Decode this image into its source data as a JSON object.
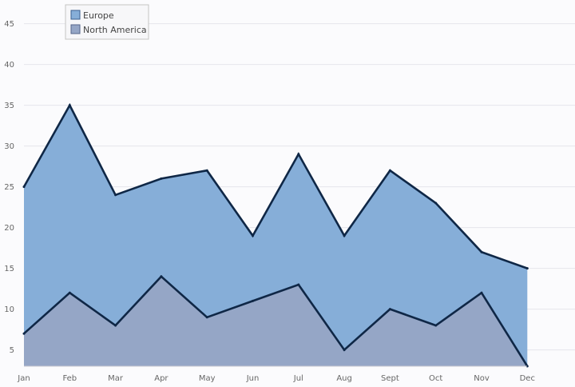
{
  "chart_data": {
    "type": "area",
    "categories": [
      "Jan",
      "Feb",
      "Mar",
      "Apr",
      "May",
      "Jun",
      "Jul",
      "Aug",
      "Sept",
      "Oct",
      "Nov",
      "Dec"
    ],
    "series": [
      {
        "name": "Europe",
        "values": [
          25,
          35,
          24,
          26,
          27,
          19,
          29,
          19,
          27,
          23,
          17,
          15
        ],
        "color": "#86aed8"
      },
      {
        "name": "North America",
        "values": [
          7,
          12,
          8,
          14,
          9,
          11,
          13,
          5,
          10,
          8,
          12,
          3
        ],
        "color": "#95a6c6"
      }
    ],
    "y_ticks": [
      5,
      10,
      15,
      20,
      25,
      30,
      35,
      40,
      45
    ],
    "ylim": [
      3,
      48
    ],
    "line_color": "#0f2746",
    "grid": true,
    "legend_position": "top-left"
  }
}
